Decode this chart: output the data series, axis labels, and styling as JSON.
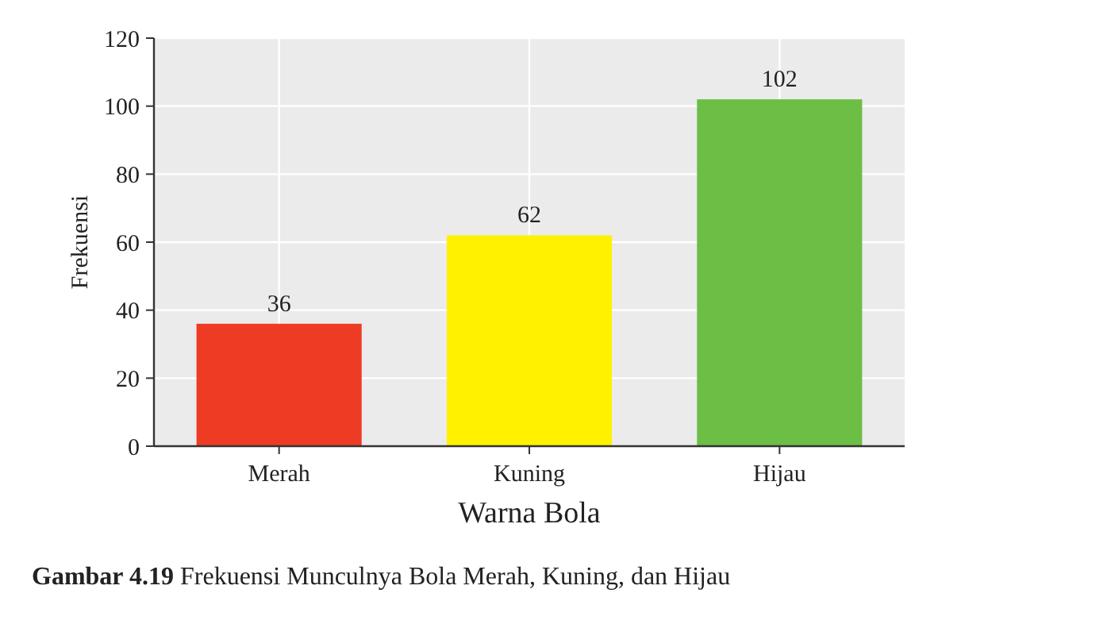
{
  "chart_data": {
    "type": "bar",
    "xlabel": "Warna Bola",
    "ylabel": "Frekuensi",
    "categories": [
      "Merah",
      "Kuning",
      "Hijau"
    ],
    "values": [
      36,
      62,
      102
    ],
    "colors": [
      "#ee3b24",
      "#fff100",
      "#6dbe45"
    ],
    "data_labels": true,
    "ylim": [
      0,
      120
    ],
    "yticks": [
      0,
      20,
      40,
      60,
      80,
      100,
      120
    ],
    "grid": true,
    "annotations": [
      "Gambar 4.19 Frekuensi Munculnya Bola Merah, Kuning, dan Hijau"
    ]
  }
}
